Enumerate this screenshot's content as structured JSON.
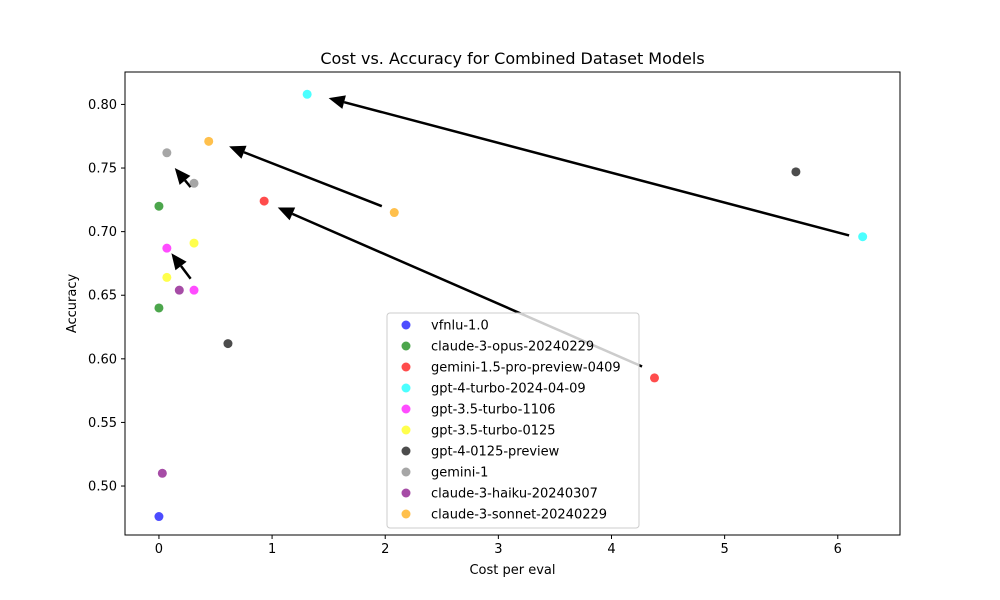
{
  "chart_data": {
    "type": "scatter",
    "title": "Cost vs. Accuracy for Combined Dataset Models",
    "xlabel": "Cost per eval",
    "ylabel": "Accuracy",
    "xlim": [
      -0.3,
      6.55
    ],
    "ylim": [
      0.4615,
      0.8255
    ],
    "xticks": [
      0,
      1,
      2,
      3,
      4,
      5,
      6
    ],
    "xtick_labels": [
      "0",
      "1",
      "2",
      "3",
      "4",
      "5",
      "6"
    ],
    "yticks": [
      0.5,
      0.55,
      0.6,
      0.65,
      0.7,
      0.75,
      0.8
    ],
    "ytick_labels": [
      "0.50",
      "0.55",
      "0.60",
      "0.65",
      "0.70",
      "0.75",
      "0.80"
    ],
    "grid": false,
    "legend_position": "bottom-center",
    "point_alpha": 0.7,
    "series": [
      {
        "name": "vfnlu-1.0",
        "color": "#0000ff",
        "points": [
          [
            0.0,
            0.476
          ]
        ]
      },
      {
        "name": "claude-3-opus-20240229",
        "color": "#008000",
        "points": [
          [
            0.0,
            0.72
          ],
          [
            0.0,
            0.64
          ]
        ]
      },
      {
        "name": "gemini-1.5-pro-preview-0409",
        "color": "#ff0000",
        "points": [
          [
            0.93,
            0.724
          ],
          [
            4.38,
            0.585
          ]
        ]
      },
      {
        "name": "gpt-4-turbo-2024-04-09",
        "color": "#00ffff",
        "points": [
          [
            1.31,
            0.808
          ],
          [
            6.22,
            0.696
          ]
        ]
      },
      {
        "name": "gpt-3.5-turbo-1106",
        "color": "#ff00ff",
        "points": [
          [
            0.07,
            0.687
          ],
          [
            0.31,
            0.654
          ]
        ]
      },
      {
        "name": "gpt-3.5-turbo-0125",
        "color": "#ffff00",
        "points": [
          [
            0.07,
            0.664
          ],
          [
            0.31,
            0.691
          ]
        ]
      },
      {
        "name": "gpt-4-0125-preview",
        "color": "#000000",
        "points": [
          [
            5.63,
            0.747
          ],
          [
            0.61,
            0.612
          ]
        ]
      },
      {
        "name": "gemini-1",
        "color": "#808080",
        "points": [
          [
            0.07,
            0.762
          ],
          [
            0.31,
            0.738
          ]
        ]
      },
      {
        "name": "claude-3-haiku-20240307",
        "color": "#800080",
        "points": [
          [
            0.03,
            0.51
          ],
          [
            0.18,
            0.654
          ]
        ]
      },
      {
        "name": "claude-3-sonnet-20240229",
        "color": "#ffa500",
        "points": [
          [
            0.44,
            0.771
          ],
          [
            2.08,
            0.715
          ]
        ]
      }
    ],
    "arrows": [
      {
        "from": [
          6.1,
          0.697
        ],
        "to": [
          1.5,
          0.805
        ]
      },
      {
        "from": [
          1.97,
          0.72
        ],
        "to": [
          0.62,
          0.767
        ]
      },
      {
        "from": [
          4.27,
          0.594
        ],
        "to": [
          1.05,
          0.719
        ]
      },
      {
        "from": [
          0.28,
          0.735
        ],
        "to": [
          0.14,
          0.75
        ]
      },
      {
        "from": [
          0.28,
          0.663
        ],
        "to": [
          0.11,
          0.683
        ]
      }
    ]
  }
}
